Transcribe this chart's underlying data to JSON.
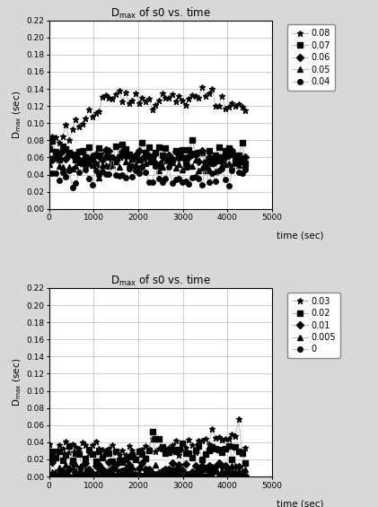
{
  "title": "D$_\\mathrm{max}$ of s0 vs. time",
  "xlabel": "time (sec)",
  "ylabel": "D$_\\mathrm{max}$ (sec)",
  "xlim": [
    0,
    5000
  ],
  "ylim": [
    0,
    0.22
  ],
  "yticks": [
    0,
    0.02,
    0.04,
    0.06,
    0.08,
    0.1,
    0.12,
    0.14,
    0.16,
    0.18,
    0.2,
    0.22
  ],
  "xticks": [
    0,
    1000,
    2000,
    3000,
    4000,
    5000
  ],
  "bg_color": "#d8d8d8",
  "plot_bg": "#ffffff",
  "line_color": "#aaaaaa",
  "marker_color": "#000000",
  "top_labels": [
    "0.08",
    "0.07",
    "0.06",
    "0.05",
    "0.04"
  ],
  "bot_labels": [
    "0.03",
    "0.02",
    "0.01",
    "0.005",
    "0"
  ],
  "top_markers": [
    "*",
    "s",
    "D",
    "^",
    "o"
  ],
  "bot_markers": [
    "*",
    "s",
    "D",
    "^",
    "o"
  ]
}
